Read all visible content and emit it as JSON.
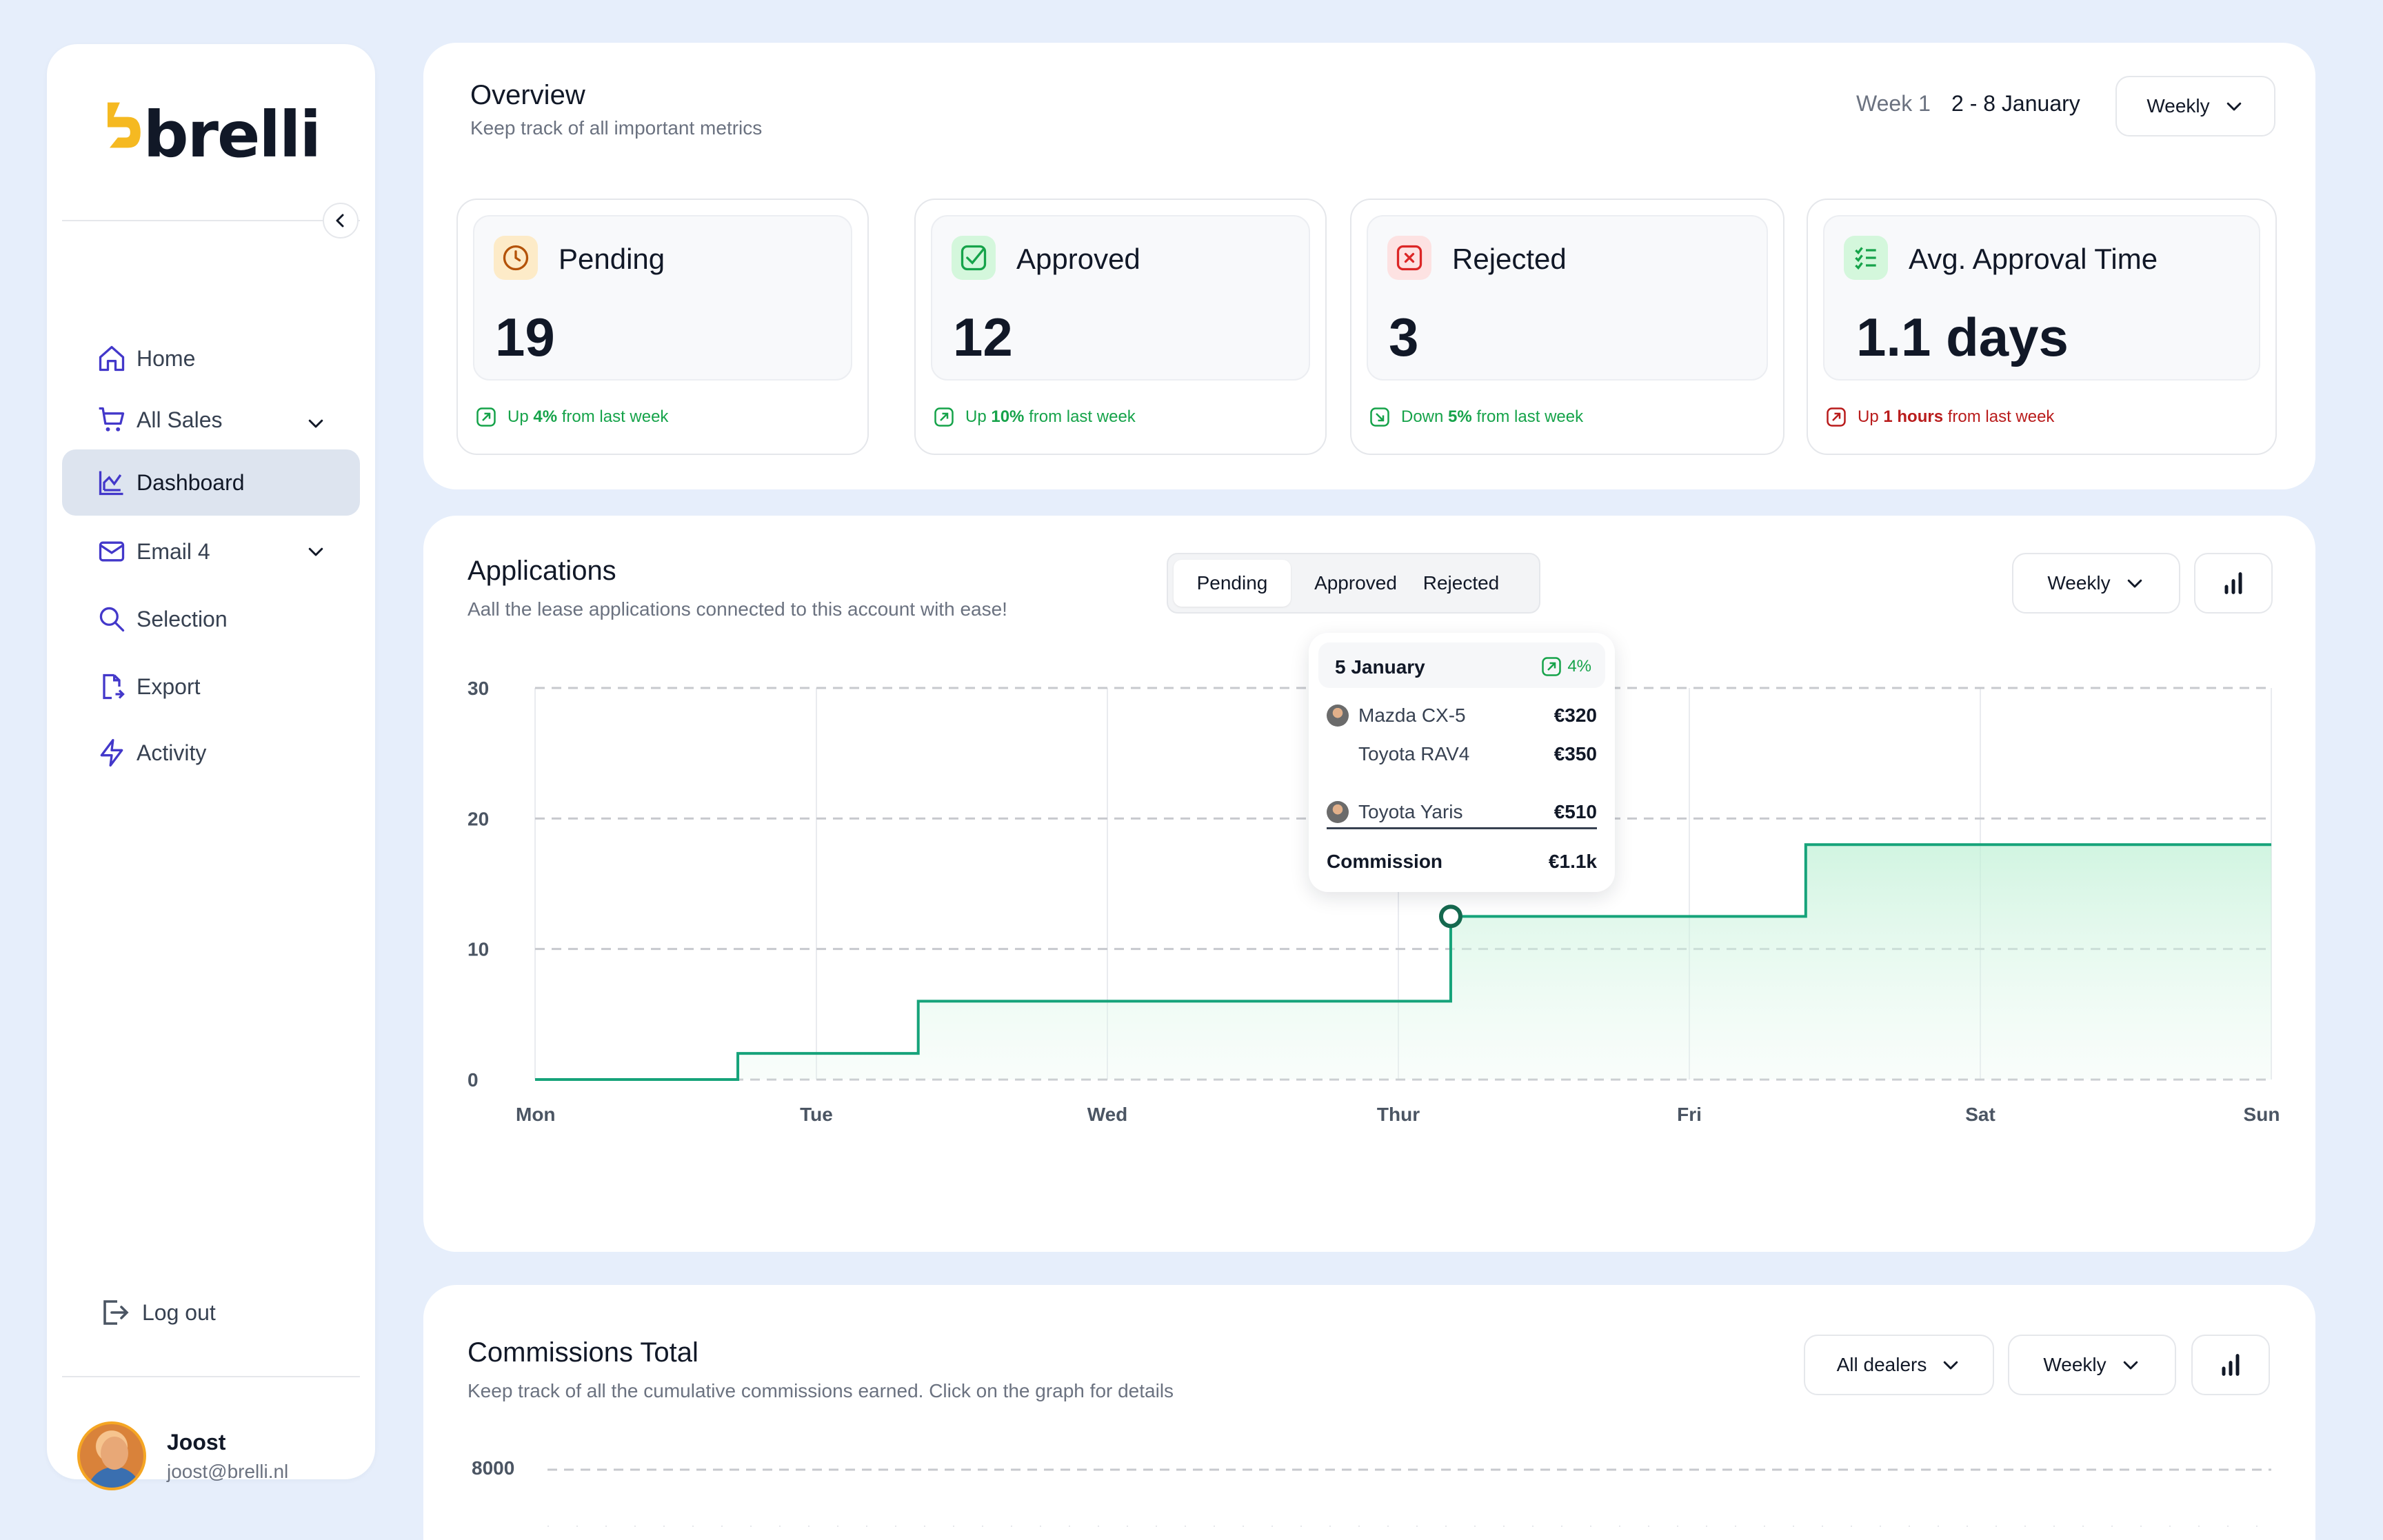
{
  "sidebar": {
    "logo_text": "brelli",
    "items": [
      {
        "label": "Home",
        "icon": "home-icon"
      },
      {
        "label": "All Sales",
        "icon": "cart-icon"
      },
      {
        "label": "Dashboard",
        "icon": "chart-icon"
      },
      {
        "label": "Email 4",
        "icon": "mail-icon"
      },
      {
        "label": "Selection",
        "icon": "search-icon"
      },
      {
        "label": "Export",
        "icon": "export-icon"
      },
      {
        "label": "Activity",
        "icon": "bolt-icon"
      }
    ],
    "logout": "Log out",
    "user": {
      "name": "Joost",
      "email": "joost@brelli.nl"
    }
  },
  "overview": {
    "title": "Overview",
    "subtitle": "Keep track of all important metrics",
    "week": "Week 1",
    "dates": "2 - 8 January",
    "period": "Weekly",
    "metrics": [
      {
        "label": "Pending",
        "value": "19",
        "trend_dir": "Up",
        "trend_pct": "4%",
        "trend_rest": "from last week",
        "icon": "clock-icon",
        "accent": "#f59e0b"
      },
      {
        "label": "Approved",
        "value": "12",
        "trend_dir": "Up",
        "trend_pct": "10%",
        "trend_rest": "from last week",
        "icon": "check-icon",
        "accent": "#16a34a"
      },
      {
        "label": "Rejected",
        "value": "3",
        "trend_dir": "Down",
        "trend_pct": "5%",
        "trend_rest": "from last week",
        "icon": "x-icon",
        "accent": "#dc2626"
      },
      {
        "label": "Avg. Approval Time",
        "value": "1.1 days",
        "trend_dir": "Up",
        "trend_pct": "1 hours",
        "trend_rest": "from last week",
        "icon": "list-check-icon",
        "accent": "#16a34a"
      }
    ]
  },
  "applications": {
    "title": "Applications",
    "subtitle": "Aall the lease applications connected to this account with ease!",
    "tabs": [
      "Pending",
      "Approved",
      "Rejected"
    ],
    "period": "Weekly",
    "tooltip": {
      "date": "5 January",
      "badge": "4%",
      "rows": [
        {
          "car": "Mazda CX-5",
          "price": "€320"
        },
        {
          "car": "Toyota RAV4",
          "price": "€350"
        },
        {
          "car": "Toyota Yaris",
          "price": "€510"
        }
      ],
      "total_label": "Commission",
      "total_value": "€1.1k"
    }
  },
  "chart_data": {
    "type": "area",
    "x_categories": [
      "Mon",
      "Tue",
      "Wed",
      "Thur",
      "Fri",
      "Sat",
      "Sun"
    ],
    "y_ticks": [
      0,
      10,
      20,
      30
    ],
    "ylim": [
      0,
      30
    ],
    "step_points": [
      {
        "x": 0.0,
        "y": 0
      },
      {
        "x": 0.73,
        "y": 0
      },
      {
        "x": 0.73,
        "y": 2
      },
      {
        "x": 1.35,
        "y": 2
      },
      {
        "x": 1.35,
        "y": 6
      },
      {
        "x": 3.18,
        "y": 6
      },
      {
        "x": 3.18,
        "y": 12.5
      },
      {
        "x": 4.4,
        "y": 12.5
      },
      {
        "x": 4.4,
        "y": 18
      },
      {
        "x": 6.0,
        "y": 18
      }
    ],
    "highlight": {
      "x": 3.18,
      "y": 12.5
    },
    "line_color": "#16a37a",
    "grid": true
  },
  "commissions": {
    "title": "Commissions Total",
    "subtitle": "Keep track of all the cumulative commissions earned. Click on the graph for details",
    "dealers": "All dealers",
    "period": "Weekly",
    "y_tick": "8000"
  }
}
